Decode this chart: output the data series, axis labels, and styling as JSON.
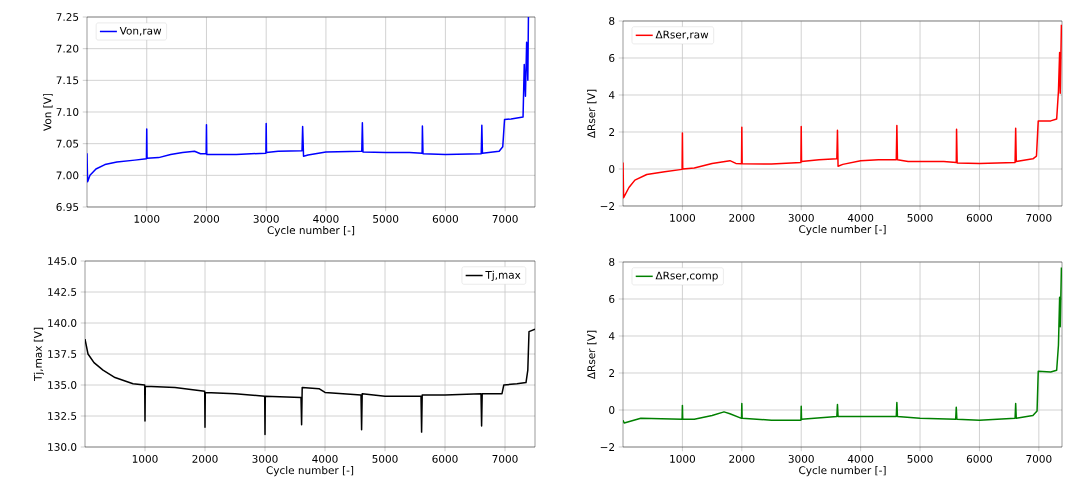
{
  "chart_data": [
    {
      "type": "line",
      "xlabel": "Cycle number [-]",
      "ylabel": "Von [V]",
      "xlim": [
        0,
        7500
      ],
      "ylim": [
        6.95,
        7.25
      ],
      "xticks": [
        1000,
        2000,
        3000,
        4000,
        5000,
        6000,
        7000
      ],
      "yticks": [
        {
          "value": 6.95,
          "label": "6.95"
        },
        {
          "value": 7.0,
          "label": "7.00"
        },
        {
          "value": 7.05,
          "label": "7.05"
        },
        {
          "value": 7.1,
          "label": "7.10"
        },
        {
          "value": 7.15,
          "label": "7.15"
        },
        {
          "value": 7.2,
          "label": "7.20"
        },
        {
          "value": 7.25,
          "label": "7.25"
        }
      ],
      "grid": true,
      "legend": "top left",
      "x": [
        0,
        10,
        50,
        150,
        300,
        500,
        800,
        995,
        1000,
        1005,
        1200,
        1400,
        1600,
        1800,
        1900,
        1995,
        2000,
        2005,
        2500,
        2995,
        3000,
        3005,
        3200,
        3600,
        3610,
        3625,
        3700,
        4000,
        4600,
        4610,
        4620,
        5000,
        5400,
        5610,
        5615,
        5625,
        6000,
        6600,
        6610,
        6620,
        6900,
        6960,
        6990,
        7100,
        7300,
        7320,
        7340,
        7360,
        7380,
        7390
      ],
      "series": [
        {
          "name": "Von,raw",
          "color": "#0000ff",
          "values": [
            7.035,
            6.99,
            7.0,
            7.01,
            7.017,
            7.021,
            7.024,
            7.026,
            7.073,
            7.027,
            7.028,
            7.033,
            7.036,
            7.038,
            7.034,
            7.034,
            7.08,
            7.033,
            7.033,
            7.035,
            7.082,
            7.036,
            7.038,
            7.039,
            7.077,
            7.03,
            7.032,
            7.037,
            7.038,
            7.083,
            7.037,
            7.036,
            7.036,
            7.035,
            7.078,
            7.034,
            7.033,
            7.034,
            7.079,
            7.035,
            7.038,
            7.045,
            7.088,
            7.089,
            7.092,
            7.175,
            7.125,
            7.21,
            7.15,
            7.25
          ]
        }
      ]
    },
    {
      "type": "line",
      "xlabel": "Cycle number [-]",
      "ylabel": "ΔRser [V]",
      "xlim": [
        0,
        7390
      ],
      "ylim": [
        -2,
        8
      ],
      "xticks": [
        1000,
        2000,
        3000,
        4000,
        5000,
        6000,
        7000
      ],
      "yticks": [
        {
          "value": -2,
          "label": "−2"
        },
        0,
        2,
        4,
        6,
        8
      ],
      "grid": true,
      "legend": "top left",
      "x": [
        0,
        10,
        100,
        200,
        400,
        700,
        995,
        1000,
        1005,
        1200,
        1500,
        1800,
        1900,
        1995,
        2000,
        2005,
        2500,
        2995,
        3000,
        3005,
        3300,
        3600,
        3610,
        3620,
        3700,
        4000,
        4300,
        4600,
        4610,
        4620,
        4800,
        5400,
        5610,
        5615,
        5625,
        6000,
        6600,
        6610,
        6620,
        6900,
        6960,
        6990,
        7200,
        7300,
        7330,
        7350,
        7360,
        7380
      ],
      "series": [
        {
          "name": "ΔRser,raw",
          "color": "#ff0000",
          "values": [
            0.35,
            -1.55,
            -1.0,
            -0.6,
            -0.3,
            -0.15,
            -0.02,
            1.95,
            0,
            0.05,
            0.3,
            0.45,
            0.3,
            0.28,
            2.25,
            0.28,
            0.27,
            0.35,
            2.3,
            0.4,
            0.5,
            0.55,
            2.1,
            0.15,
            0.25,
            0.45,
            0.5,
            0.5,
            2.35,
            0.5,
            0.4,
            0.4,
            0.35,
            2.15,
            0.33,
            0.3,
            0.35,
            2.2,
            0.4,
            0.55,
            0.7,
            2.6,
            2.6,
            2.7,
            4.2,
            6.3,
            4.1,
            7.8
          ]
        }
      ]
    },
    {
      "type": "line",
      "xlabel": "Cycle number [-]",
      "ylabel": "Tj,max [V]",
      "xlim": [
        0,
        7500
      ],
      "ylim": [
        130,
        145
      ],
      "xticks": [
        1000,
        2000,
        3000,
        4000,
        5000,
        6000,
        7000
      ],
      "yticks": [
        {
          "value": 130,
          "label": "130.0"
        },
        {
          "value": 132.5,
          "label": "132.5"
        },
        {
          "value": 135,
          "label": "135.0"
        },
        {
          "value": 137.5,
          "label": "137.5"
        },
        {
          "value": 140,
          "label": "140.0"
        },
        {
          "value": 142.5,
          "label": "142.5"
        },
        {
          "value": 145,
          "label": "145.0"
        }
      ],
      "grid": true,
      "legend": "top right",
      "x": [
        0,
        50,
        150,
        300,
        500,
        800,
        995,
        1000,
        1005,
        1500,
        1995,
        2000,
        2005,
        2500,
        2995,
        3000,
        3005,
        3600,
        3610,
        3620,
        3900,
        4000,
        4600,
        4610,
        4620,
        5000,
        5600,
        5610,
        5620,
        6000,
        6600,
        6610,
        6620,
        6950,
        6980,
        7200,
        7350,
        7380,
        7400,
        7500
      ],
      "series": [
        {
          "name": "Tj,max",
          "color": "#000000",
          "values": [
            138.7,
            137.5,
            136.8,
            136.2,
            135.6,
            135.1,
            135.0,
            132.1,
            134.9,
            134.8,
            134.5,
            131.6,
            134.4,
            134.3,
            134.1,
            131.0,
            134.1,
            134.0,
            131.8,
            134.8,
            134.7,
            134.4,
            134.2,
            131.4,
            134.3,
            134.1,
            134.1,
            131.2,
            134.2,
            134.2,
            134.3,
            131.7,
            134.3,
            134.3,
            135.0,
            135.1,
            135.2,
            136.2,
            139.3,
            139.5
          ]
        }
      ]
    },
    {
      "type": "line",
      "xlabel": "Cycle number [-]",
      "ylabel": "ΔRser [V]",
      "xlim": [
        0,
        7390
      ],
      "ylim": [
        -2,
        8
      ],
      "xticks": [
        1000,
        2000,
        3000,
        4000,
        5000,
        6000,
        7000
      ],
      "yticks": [
        {
          "value": -2,
          "label": "−2"
        },
        0,
        2,
        4,
        6,
        8
      ],
      "grid": true,
      "legend": "top left",
      "x": [
        0,
        20,
        300,
        995,
        1000,
        1005,
        1200,
        1500,
        1700,
        1800,
        1995,
        2000,
        2005,
        2500,
        2995,
        3000,
        3005,
        3600,
        3610,
        3620,
        4000,
        4600,
        4610,
        4620,
        5000,
        5600,
        5610,
        5620,
        6000,
        6600,
        6610,
        6620,
        6900,
        6970,
        6990,
        7200,
        7300,
        7330,
        7350,
        7360,
        7380
      ],
      "series": [
        {
          "name": "ΔRser,comp",
          "color": "#008000",
          "values": [
            -0.55,
            -0.7,
            -0.45,
            -0.5,
            0.25,
            -0.5,
            -0.5,
            -0.3,
            -0.1,
            -0.2,
            -0.45,
            0.35,
            -0.45,
            -0.55,
            -0.55,
            0.2,
            -0.5,
            -0.35,
            0.3,
            -0.35,
            -0.35,
            -0.35,
            0.4,
            -0.35,
            -0.45,
            -0.5,
            0.15,
            -0.5,
            -0.55,
            -0.45,
            0.35,
            -0.45,
            -0.3,
            -0.05,
            2.1,
            2.05,
            2.15,
            3.5,
            6.1,
            4.5,
            7.7
          ]
        }
      ]
    }
  ]
}
